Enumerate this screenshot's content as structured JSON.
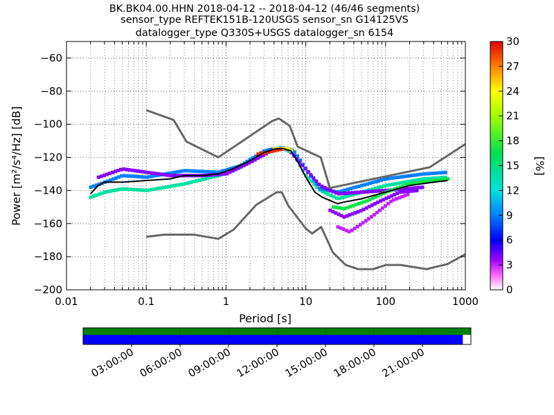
{
  "title": {
    "line1": "BK.BK04.00.HHN   2018-04-12 -- 2018-04-12  (46/46 segments)",
    "line2": "sensor_type REFTEK151B-120USGS sensor_sn G14125VS",
    "line3": "datalogger_type Q330S+USGS datalogger_sn 6154"
  },
  "chart_data": {
    "type": "heatmap",
    "xlabel": "Period [s]",
    "ylabel": "Power [m²/s⁴/Hz] [dB]",
    "x_scale": "log",
    "xlim": [
      0.01,
      1000
    ],
    "ylim": [
      -200,
      -50
    ],
    "x_ticks": [
      0.01,
      0.1,
      1,
      10,
      100,
      1000
    ],
    "x_tick_labels": [
      "0.01",
      "0.1",
      "1",
      "10",
      "100",
      "1000"
    ],
    "y_ticks": [
      -200,
      -180,
      -160,
      -140,
      -120,
      -100,
      -80,
      -60
    ],
    "y_tick_labels": [
      "−200",
      "−180",
      "−160",
      "−140",
      "−120",
      "−100",
      "−80",
      "−60"
    ],
    "colorbar": {
      "label": "[%]",
      "range": [
        0,
        30
      ],
      "ticks": [
        0,
        3,
        6,
        9,
        12,
        15,
        18,
        21,
        24,
        27,
        30
      ],
      "tick_labels": [
        "0",
        "3",
        "6",
        "9",
        "12",
        "15",
        "18",
        "21",
        "24",
        "27",
        "30"
      ]
    },
    "noise_models": {
      "new_high_noise_model": [
        [
          0.1,
          -91.5
        ],
        [
          0.22,
          -97.4
        ],
        [
          0.32,
          -110.5
        ],
        [
          0.8,
          -120
        ],
        [
          3.8,
          -98
        ],
        [
          4.6,
          -96.5
        ],
        [
          6.3,
          -101
        ],
        [
          7.9,
          -113.5
        ],
        [
          15.4,
          -120
        ],
        [
          20,
          -138.5
        ],
        [
          354.8,
          -126
        ],
        [
          1000,
          -112
        ]
      ],
      "new_low_noise_model": [
        [
          0.1,
          -168
        ],
        [
          0.17,
          -166.7
        ],
        [
          0.4,
          -166.7
        ],
        [
          0.8,
          -169.2
        ],
        [
          1.24,
          -163.7
        ],
        [
          2.4,
          -148.6
        ],
        [
          4.3,
          -141.1
        ],
        [
          5.0,
          -141.1
        ],
        [
          6.0,
          -149
        ],
        [
          10,
          -163
        ],
        [
          12,
          -166
        ],
        [
          15.6,
          -162
        ],
        [
          21.9,
          -177.5
        ],
        [
          31.6,
          -185
        ],
        [
          45,
          -187.5
        ],
        [
          70,
          -187.5
        ],
        [
          101,
          -185
        ],
        [
          154,
          -185
        ],
        [
          328,
          -187.5
        ],
        [
          600,
          -184.4
        ],
        [
          1000,
          -178.5
        ]
      ]
    },
    "mean_psd": [
      [
        0.02,
        -142
      ],
      [
        0.025,
        -137
      ],
      [
        0.03,
        -135
      ],
      [
        0.05,
        -135
      ],
      [
        0.1,
        -134
      ],
      [
        0.2,
        -133
      ],
      [
        0.3,
        -131
      ],
      [
        0.5,
        -131
      ],
      [
        0.8,
        -130
      ],
      [
        1.2,
        -127
      ],
      [
        2,
        -122
      ],
      [
        3,
        -117
      ],
      [
        4,
        -115
      ],
      [
        5,
        -114.5
      ],
      [
        6.5,
        -116
      ],
      [
        8,
        -123
      ],
      [
        10,
        -132
      ],
      [
        13,
        -141
      ],
      [
        16,
        -144
      ],
      [
        20,
        -146
      ],
      [
        25,
        -148
      ],
      [
        30,
        -147
      ],
      [
        50,
        -145
      ],
      [
        100,
        -141
      ],
      [
        200,
        -137
      ],
      [
        400,
        -135
      ],
      [
        600,
        -134
      ]
    ],
    "histogram_ridges": [
      [
        [
          0.02,
          -144
        ],
        [
          0.03,
          -141
        ],
        [
          0.05,
          -139
        ],
        [
          0.1,
          -140
        ],
        [
          0.3,
          -136
        ],
        [
          0.8,
          -131
        ],
        [
          1.5,
          -126
        ],
        [
          3,
          -117
        ],
        [
          5,
          -114
        ],
        [
          7,
          -118
        ],
        [
          10,
          -131
        ],
        [
          15,
          -140
        ],
        [
          25,
          -145
        ],
        [
          50,
          -141
        ],
        [
          100,
          -137
        ],
        [
          300,
          -133
        ],
        [
          600,
          -132
        ],
        14
      ],
      [
        [
          0.02,
          -138
        ],
        [
          0.03,
          -135
        ],
        [
          0.05,
          -131
        ],
        [
          0.1,
          -132
        ],
        [
          0.3,
          -128
        ],
        [
          0.8,
          -129
        ],
        [
          1.5,
          -125
        ],
        [
          3,
          -116
        ],
        [
          5,
          -114
        ],
        [
          7,
          -116
        ],
        [
          10,
          -127
        ],
        [
          15,
          -139
        ],
        [
          25,
          -141
        ],
        [
          50,
          -137
        ],
        [
          100,
          -133
        ],
        [
          300,
          -130
        ],
        [
          600,
          -129
        ],
        9
      ],
      [
        [
          0.025,
          -132
        ],
        [
          0.05,
          -127
        ],
        [
          0.1,
          -129
        ],
        [
          0.2,
          -131
        ],
        [
          0.5,
          -131
        ],
        [
          1,
          -130
        ],
        [
          2,
          -123
        ],
        [
          4,
          -115
        ],
        [
          6,
          -115
        ],
        [
          9,
          -125
        ],
        [
          15,
          -137
        ],
        [
          25,
          -142
        ],
        [
          50,
          -141
        ],
        [
          100,
          -140
        ],
        [
          300,
          -138
        ],
        4
      ],
      [
        [
          20,
          -152
        ],
        [
          30,
          -156
        ],
        [
          50,
          -152
        ],
        [
          80,
          -147
        ],
        [
          150,
          -141
        ],
        [
          250,
          -140
        ],
        4
      ],
      [
        [
          25,
          -162
        ],
        [
          35,
          -165
        ],
        [
          50,
          -160
        ],
        [
          70,
          -155
        ],
        [
          120,
          -146
        ],
        [
          200,
          -142
        ],
        3
      ],
      [
        [
          22,
          -150
        ],
        [
          30,
          -151
        ],
        [
          60,
          -146
        ],
        [
          100,
          -141
        ],
        [
          200,
          -136
        ],
        [
          600,
          -133
        ],
        17
      ],
      [
        [
          4,
          -115
        ],
        [
          5,
          -114.5
        ],
        [
          6,
          -115
        ],
        [
          7,
          -117
        ],
        24
      ],
      [
        [
          2.5,
          -118
        ],
        [
          4,
          -116
        ],
        [
          5,
          -115
        ],
        29
      ]
    ]
  },
  "time_axis": {
    "tick_labels": [
      "03:00:00",
      "06:00:00",
      "09:00:00",
      "12:00:00",
      "15:00:00",
      "18:00:00",
      "21:00:00"
    ],
    "hours": [
      3,
      6,
      9,
      12,
      15,
      18,
      21
    ],
    "span_hours": 24,
    "data_coverage_hours": [
      0,
      23.5
    ],
    "gap_coverage_hours": [
      0,
      24
    ],
    "colors": {
      "data": "#0000ff",
      "gaps": "#008000"
    }
  },
  "colors": {
    "noise_model": "#666666",
    "mean": "#000000",
    "grid": "#000000"
  }
}
